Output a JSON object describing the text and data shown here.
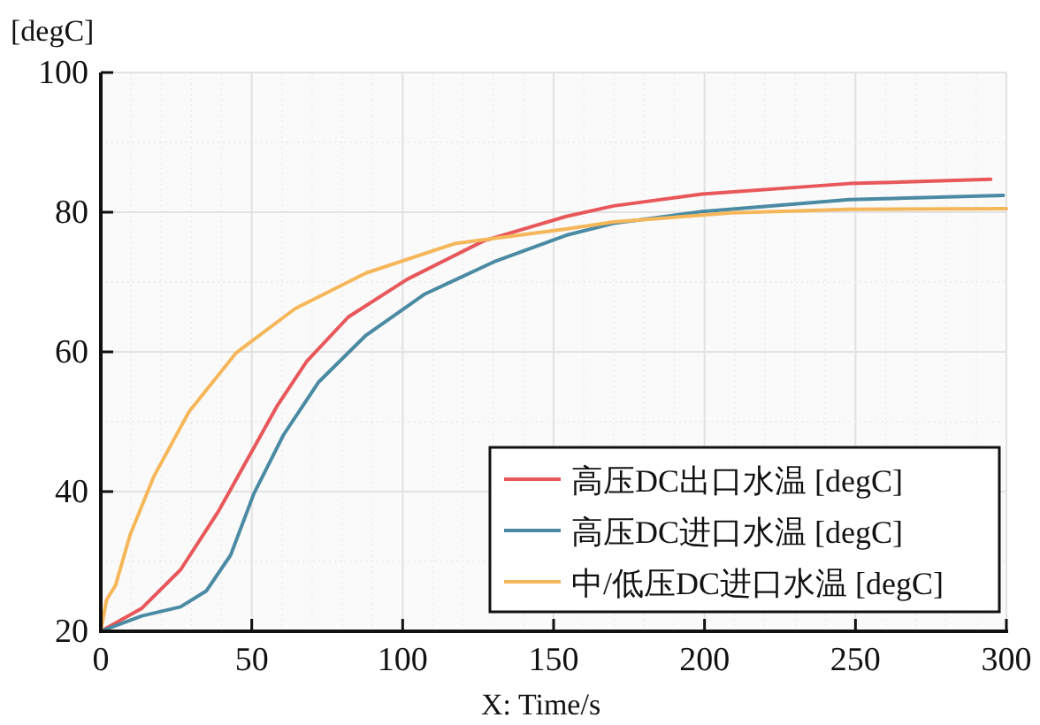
{
  "chart_data": {
    "type": "line",
    "xlabel": "X: Time/s",
    "ylabel": "[degC]",
    "xlim": [
      0,
      300
    ],
    "ylim": [
      20,
      100
    ],
    "xticks": [
      0,
      50,
      100,
      150,
      200,
      250,
      300
    ],
    "yticks": [
      20,
      40,
      60,
      80,
      100
    ],
    "grid": true,
    "legend": "bottom right",
    "series": [
      {
        "name": "高压DC出口水温 [degC]",
        "color": "#e8575a",
        "x": [
          0,
          13.6,
          26.4,
          39,
          48.8,
          58.6,
          68.3,
          82,
          101.5,
          126.9,
          154.2,
          169.9,
          199.2,
          248,
          294.8
        ],
        "values": [
          20,
          23.3,
          28.8,
          37.2,
          44.8,
          52.4,
          58.7,
          65,
          70.4,
          75.9,
          79.4,
          80.9,
          82.6,
          84.1,
          84.7
        ]
      },
      {
        "name": "高压DC进口水温 [degC]",
        "color": "#4a8aa3",
        "x": [
          0,
          13.6,
          26.4,
          35,
          43,
          50.7,
          60.5,
          72.2,
          87.9,
          107.4,
          130.8,
          154.2,
          169.9,
          199.2,
          248,
          299
        ],
        "values": [
          20,
          22.2,
          23.5,
          25.8,
          30.9,
          39.7,
          48.1,
          55.7,
          62.4,
          68.3,
          73,
          76.7,
          78.4,
          80.1,
          81.8,
          82.4
        ]
      },
      {
        "name": "中/低压DC进口水温 [degC]",
        "color": "#f5b75a",
        "x": [
          0,
          1.9,
          4.9,
          9.7,
          17.6,
          29.3,
          44.9,
          64.4,
          87.9,
          117.2,
          154.2,
          169.9,
          208.9,
          248,
          300
        ],
        "values": [
          20,
          24.5,
          26.6,
          33.8,
          42.2,
          51.5,
          59.9,
          66.2,
          71.3,
          75.5,
          77.6,
          78.6,
          79.9,
          80.4,
          80.5
        ]
      }
    ]
  }
}
